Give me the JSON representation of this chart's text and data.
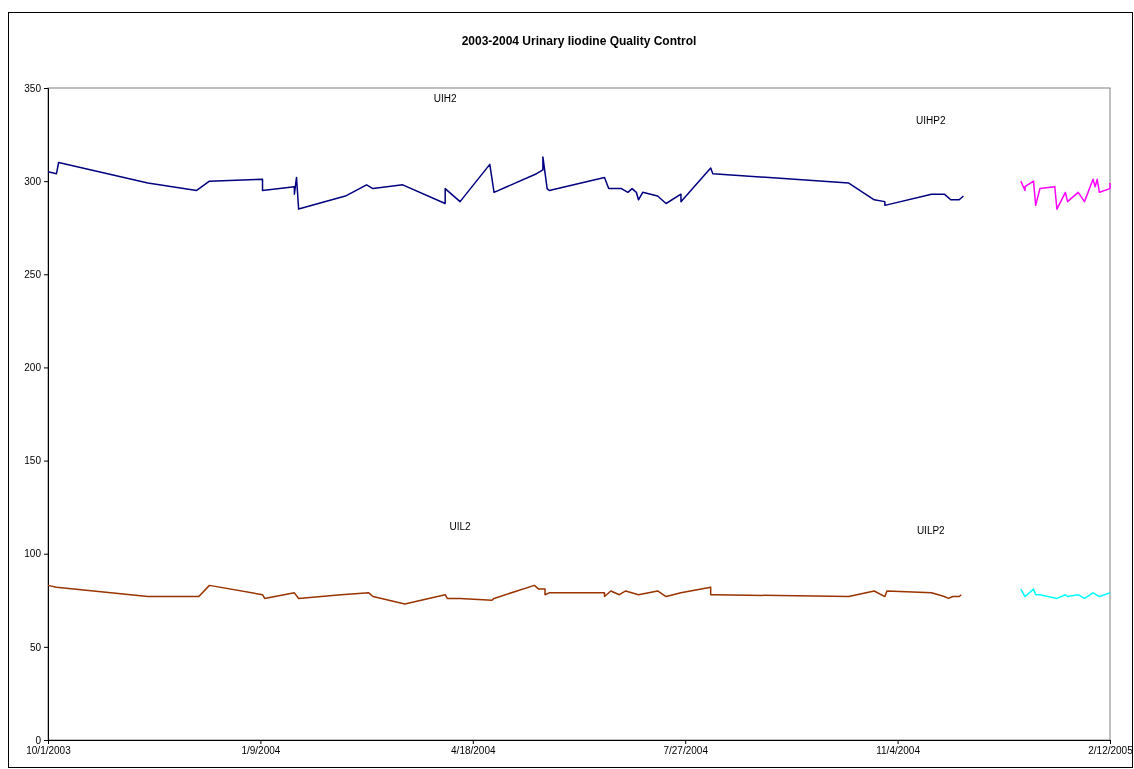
{
  "chart_data": {
    "type": "line",
    "title": "2003-2004 Urinary Iiodine Quality Control",
    "xlim": [
      "2003-10-01",
      "2005-02-12"
    ],
    "xticks": [
      {
        "value": "2003-10-01",
        "label": "10/1/2003"
      },
      {
        "value": "2004-01-09",
        "label": "1/9/2004"
      },
      {
        "value": "2004-04-18",
        "label": "4/18/2004"
      },
      {
        "value": "2004-07-27",
        "label": "7/27/2004"
      },
      {
        "value": "2004-11-04",
        "label": "11/4/2004"
      },
      {
        "value": "2005-02-12",
        "label": "2/12/2005"
      }
    ],
    "ylim": [
      0,
      350
    ],
    "yticks": [
      0,
      50,
      100,
      150,
      200,
      250,
      300,
      350
    ],
    "grid": false,
    "marker": "none",
    "line_style": "solid",
    "series": [
      {
        "color": "#000080",
        "x": [
          "2003-10-01",
          "2003-10-05",
          "2003-10-06",
          "2003-11-17",
          "2003-12-10",
          "2003-12-16",
          "2004-01-10",
          "2004-01-10",
          "2004-01-25",
          "2004-01-25",
          "2004-01-26",
          "2004-01-27",
          "2004-02-18",
          "2004-02-28",
          "2004-03-02",
          "2004-03-16",
          "2004-04-05",
          "2004-04-05",
          "2004-04-12",
          "2004-04-26",
          "2004-04-28",
          "2004-05-18",
          "2004-05-21",
          "2004-05-21",
          "2004-05-23",
          "2004-05-24",
          "2004-06-19",
          "2004-06-21",
          "2004-06-27",
          "2004-06-30",
          "2004-07-02",
          "2004-07-04",
          "2004-07-05",
          "2004-07-07",
          "2004-07-14",
          "2004-07-18",
          "2004-07-25",
          "2004-07-25",
          "2004-08-08",
          "2004-08-09",
          "2004-10-12",
          "2004-10-24",
          "2004-10-29",
          "2004-10-29",
          "2004-11-20",
          "2004-11-26",
          "2004-11-29",
          "2004-12-03",
          "2004-12-05"
        ],
        "values": [
          305,
          304,
          310,
          299,
          295,
          300,
          301,
          295,
          297,
          293,
          302,
          285,
          292,
          298,
          296,
          298,
          288,
          296,
          289,
          309,
          294,
          304,
          306,
          313,
          296,
          295,
          302,
          296,
          296,
          294,
          296,
          294,
          290,
          294,
          292,
          288,
          293,
          289,
          307,
          304,
          299,
          290,
          289,
          287,
          293,
          293,
          290,
          290,
          292
        ]
      },
      {
        "color": "#ff00ff",
        "x": [
          "2005-01-01",
          "2005-01-03",
          "2005-01-03",
          "2005-01-07",
          "2005-01-08",
          "2005-01-10",
          "2005-01-17",
          "2005-01-18",
          "2005-01-22",
          "2005-01-23",
          "2005-01-28",
          "2005-01-31",
          "2005-02-04",
          "2005-02-05",
          "2005-02-06",
          "2005-02-07",
          "2005-02-12",
          "2005-02-12"
        ],
        "values": [
          300,
          295,
          297,
          300,
          287,
          296,
          297,
          285,
          294,
          289,
          294,
          289,
          301,
          297,
          301,
          294,
          296,
          299
        ]
      },
      {
        "color": "#993300",
        "x": [
          "2003-10-01",
          "2003-10-05",
          "2003-11-17",
          "2003-12-11",
          "2003-12-16",
          "2004-01-10",
          "2004-01-11",
          "2004-01-25",
          "2004-01-27",
          "2004-02-16",
          "2004-02-29",
          "2004-03-02",
          "2004-03-17",
          "2004-04-05",
          "2004-04-06",
          "2004-04-12",
          "2004-04-27",
          "2004-04-28",
          "2004-05-17",
          "2004-05-19",
          "2004-05-22",
          "2004-05-22",
          "2004-05-24",
          "2004-06-19",
          "2004-06-19",
          "2004-06-22",
          "2004-06-26",
          "2004-06-29",
          "2004-07-05",
          "2004-07-14",
          "2004-07-18",
          "2004-07-25",
          "2004-08-08",
          "2004-08-08",
          "2004-08-10",
          "2004-10-12",
          "2004-10-24",
          "2004-10-29",
          "2004-10-30",
          "2004-11-20",
          "2004-11-26",
          "2004-11-28",
          "2004-11-30",
          "2004-12-03",
          "2004-12-04"
        ],
        "values": [
          83,
          82,
          77,
          77,
          83,
          78,
          76,
          79,
          76,
          78,
          79,
          77,
          73,
          78,
          76,
          76,
          75,
          76,
          83,
          81,
          81,
          78,
          79,
          79,
          77,
          80,
          78,
          80,
          78,
          80,
          77,
          79,
          82,
          78,
          78,
          77,
          80,
          77,
          80,
          79,
          77,
          76,
          77,
          77,
          78
        ]
      },
      {
        "color": "#00ffff",
        "x": [
          "2005-01-01",
          "2005-01-03",
          "2005-01-07",
          "2005-01-08",
          "2005-01-10",
          "2005-01-18",
          "2005-01-22",
          "2005-01-23",
          "2005-01-28",
          "2005-01-31",
          "2005-02-04",
          "2005-02-07",
          "2005-02-12"
        ],
        "values": [
          81,
          77,
          81,
          78,
          78,
          76,
          78,
          77,
          78,
          76,
          79,
          77,
          79
        ]
      }
    ],
    "annotations": [
      "UIH2",
      "UIHP2",
      "UIL2",
      "UILP2"
    ]
  }
}
